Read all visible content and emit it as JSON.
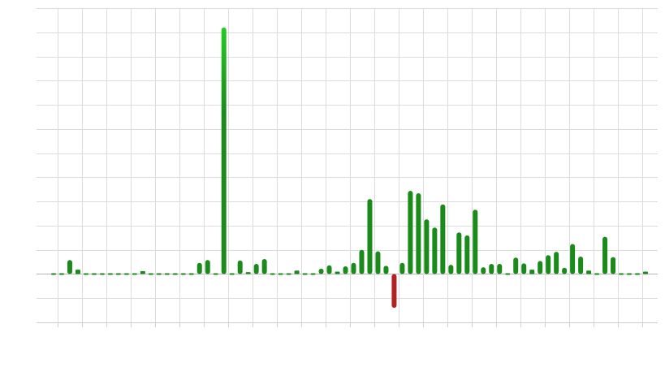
{
  "chart_data": {
    "type": "bar",
    "title": "",
    "xlabel": "",
    "ylabel": "",
    "grid": true,
    "legend": "none",
    "ylim": [
      -1,
      5.5
    ],
    "values": [
      0.01,
      0.01,
      0.29,
      0.09,
      0.0,
      0.0,
      0.03,
      0.0,
      0.01,
      0.01,
      0.01,
      0.06,
      0.0,
      0.0,
      0.02,
      0.02,
      0.02,
      0.0,
      0.23,
      0.29,
      0.0,
      5.1,
      0.02,
      0.28,
      0.04,
      0.21,
      0.31,
      0.02,
      0.02,
      0.03,
      0.07,
      0.0,
      0.02,
      0.11,
      0.18,
      0.05,
      0.16,
      0.23,
      0.5,
      1.55,
      0.47,
      0.17,
      -0.7,
      0.23,
      1.72,
      1.67,
      1.13,
      0.96,
      1.44,
      0.19,
      0.86,
      0.8,
      1.33,
      0.14,
      0.21,
      0.21,
      0.0,
      0.34,
      0.22,
      0.09,
      0.27,
      0.39,
      0.46,
      0.13,
      0.62,
      0.36,
      0.07,
      0.03,
      0.77,
      0.35,
      0.0,
      0.0,
      0.03,
      0.05
    ],
    "colors": {
      "positive": "#1a8a1a",
      "positive_highlight": "#22cc22",
      "negative": "#b22222",
      "grid": "#dcdcdc",
      "axis": "#cfcfcf"
    }
  }
}
